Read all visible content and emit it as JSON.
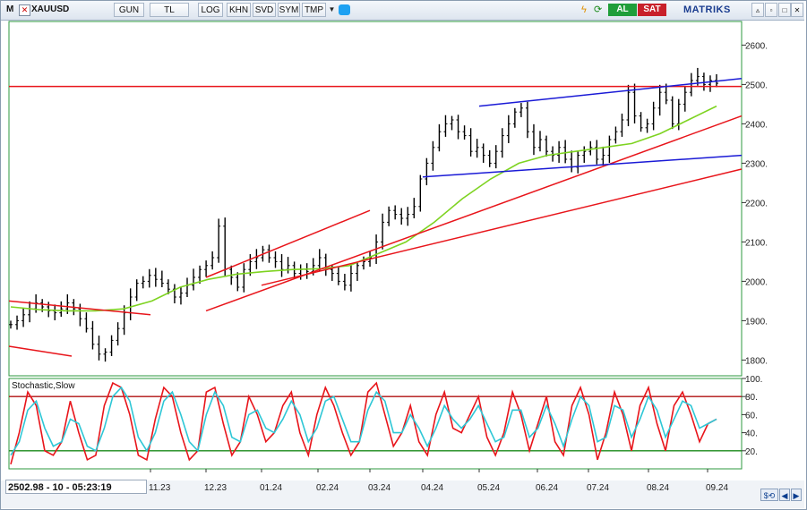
{
  "toolbar": {
    "menu_glyph": "M",
    "symbol": "XAUUSD",
    "buttons": [
      "GUN",
      "TL",
      "LOG",
      "KHN",
      "SVD",
      "SYM",
      "TMP"
    ],
    "buy_label": "AL",
    "sell_label": "SAT",
    "brand": "MATRIKS",
    "icons": [
      "close-x-icon",
      "dropdown-arrow-icon",
      "twitter-bird-icon",
      "lightning-icon",
      "refresh-icon",
      "minimize-icon",
      "restore-icon",
      "close-window-icon"
    ],
    "colors": {
      "buy": "#1f9e3a",
      "sell": "#c8202a",
      "brand": "#1a3c8f"
    }
  },
  "status": {
    "readout": "2502.98 - 10 - 05:23:19",
    "nav_icons": [
      "dollar-cycle-icon",
      "arrow-left-icon",
      "arrow-right-icon"
    ]
  },
  "chart_data": [
    {
      "type": "candlestick",
      "symbol": "XAUUSD",
      "x_tick_labels": [
        "11.23",
        "12.23",
        "01.24",
        "02.24",
        "03.24",
        "04.24",
        "05.24",
        "06.24",
        "07.24",
        "08.24",
        "09.24"
      ],
      "y_ticks": [
        1800,
        1900,
        2000,
        2100,
        2200,
        2300,
        2400,
        2500,
        2600
      ],
      "ylim": [
        1760,
        2660
      ],
      "grid": false,
      "last_price": 2502.98,
      "closes": [
        1890,
        1900,
        1915,
        1930,
        1945,
        1935,
        1925,
        1920,
        1930,
        1945,
        1930,
        1905,
        1880,
        1840,
        1815,
        1820,
        1850,
        1880,
        1920,
        1960,
        1995,
        2000,
        2015,
        2005,
        1995,
        1980,
        1960,
        1970,
        1990,
        2010,
        2030,
        2040,
        2060,
        2140,
        2030,
        2010,
        1985,
        2030,
        2050,
        2060,
        2080,
        2060,
        2050,
        2030,
        2040,
        2020,
        2030,
        2025,
        2040,
        2060,
        2030,
        2020,
        2000,
        1990,
        2020,
        2040,
        2050,
        2060,
        2100,
        2150,
        2180,
        2170,
        2160,
        2170,
        2190,
        2260,
        2300,
        2340,
        2380,
        2400,
        2410,
        2380,
        2370,
        2330,
        2340,
        2320,
        2300,
        2330,
        2370,
        2400,
        2430,
        2440,
        2380,
        2340,
        2360,
        2330,
        2320,
        2340,
        2310,
        2290,
        2320,
        2330,
        2340,
        2310,
        2320,
        2360,
        2380,
        2410,
        2480,
        2420,
        2390,
        2400,
        2440,
        2480,
        2460,
        2400,
        2450,
        2480,
        2510,
        2520,
        2500,
        2510,
        2503
      ],
      "overlays": {
        "ma_line": {
          "color": "#7ed321",
          "values": [
            1935,
            1928,
            1925,
            1925,
            1930,
            1950,
            1985,
            2005,
            2018,
            2025,
            2030,
            2032,
            2040,
            2070,
            2100,
            2150,
            2210,
            2260,
            2300,
            2320,
            2330,
            2340,
            2350,
            2375,
            2410,
            2445
          ]
        },
        "trend_lines_red": [
          {
            "from": [
              "2023-09",
              1950
            ],
            "to": [
              "2023-11",
              1915
            ]
          },
          {
            "from": [
              "2023-09",
              1835
            ],
            "to": [
              "2023-10",
              1810
            ]
          },
          {
            "from": [
              "2023-12",
              2010
            ],
            "to": [
              "2024-03",
              2180
            ]
          },
          {
            "from": [
              "2023-12",
              1925
            ],
            "to": [
              "2024-09",
              2420
            ]
          },
          {
            "from": [
              "2023-09",
              2495
            ],
            "to": [
              "2024-09",
              2495
            ]
          },
          {
            "from": [
              "2024-01",
              1990
            ],
            "to": [
              "2024-09",
              2285
            ]
          }
        ],
        "trend_lines_blue": [
          {
            "from": [
              "2024-04",
              2265
            ],
            "to": [
              "2024-09",
              2320
            ]
          },
          {
            "from": [
              "2024-05",
              2445
            ],
            "to": [
              "2024-09",
              2515
            ]
          }
        ]
      }
    },
    {
      "type": "line",
      "title": "Stochastic,Slow",
      "y_ticks": [
        20,
        40,
        60,
        80,
        100
      ],
      "ylim": [
        0,
        100
      ],
      "levels": [
        {
          "value": 80,
          "color": "#b01010"
        },
        {
          "value": 20,
          "color": "#1a8a1a"
        }
      ],
      "series": [
        {
          "color": "#e8151b",
          "values": [
            5,
            40,
            85,
            70,
            20,
            15,
            30,
            75,
            40,
            10,
            15,
            70,
            95,
            90,
            60,
            15,
            10,
            55,
            90,
            80,
            40,
            10,
            20,
            85,
            90,
            50,
            15,
            30,
            80,
            60,
            30,
            40,
            70,
            85,
            40,
            15,
            60,
            90,
            70,
            40,
            15,
            30,
            85,
            95,
            60,
            25,
            40,
            70,
            30,
            15,
            60,
            85,
            45,
            40,
            60,
            80,
            35,
            15,
            40,
            85,
            60,
            20,
            50,
            80,
            30,
            15,
            70,
            90,
            60,
            10,
            40,
            85,
            60,
            20,
            70,
            90,
            50,
            20,
            70,
            85,
            60,
            30,
            50,
            55
          ]
        },
        {
          "color": "#2ec7d6",
          "values": [
            15,
            30,
            65,
            75,
            45,
            25,
            30,
            55,
            50,
            25,
            20,
            45,
            80,
            90,
            75,
            35,
            20,
            40,
            75,
            85,
            60,
            30,
            20,
            60,
            85,
            70,
            35,
            30,
            60,
            65,
            45,
            40,
            55,
            75,
            60,
            30,
            45,
            75,
            80,
            55,
            30,
            30,
            65,
            85,
            75,
            40,
            40,
            60,
            45,
            25,
            45,
            70,
            55,
            45,
            55,
            70,
            50,
            30,
            35,
            65,
            65,
            35,
            45,
            70,
            50,
            25,
            55,
            80,
            70,
            30,
            35,
            70,
            65,
            35,
            55,
            80,
            65,
            35,
            55,
            75,
            70,
            45,
            50,
            55
          ]
        }
      ]
    }
  ]
}
